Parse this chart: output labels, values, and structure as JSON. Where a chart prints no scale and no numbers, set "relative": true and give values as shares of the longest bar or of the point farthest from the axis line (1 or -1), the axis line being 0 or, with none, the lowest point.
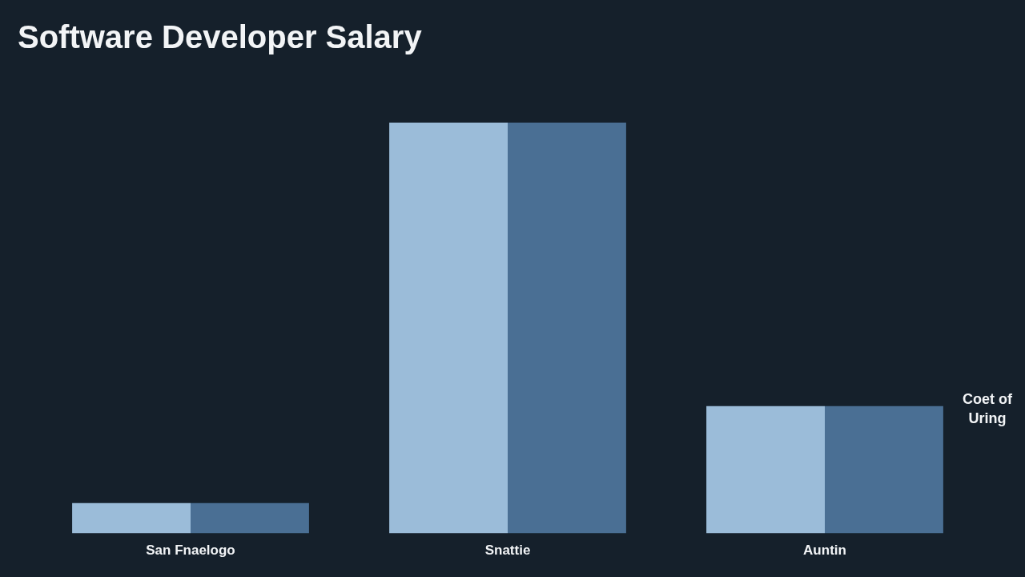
{
  "chart_data": {
    "type": "bar",
    "title": "Software Developer Salary",
    "relative": true,
    "categories": [
      "San Fnaelogo",
      "Snattie",
      "Auntin"
    ],
    "series": [
      {
        "color": "#9bbcd9",
        "values": [
          0.074,
          1,
          0.31
        ]
      },
      {
        "name": "Coet of Uring",
        "color": "#4a6f94",
        "values": [
          0.074,
          1,
          0.31
        ]
      }
    ],
    "legend": false
  }
}
